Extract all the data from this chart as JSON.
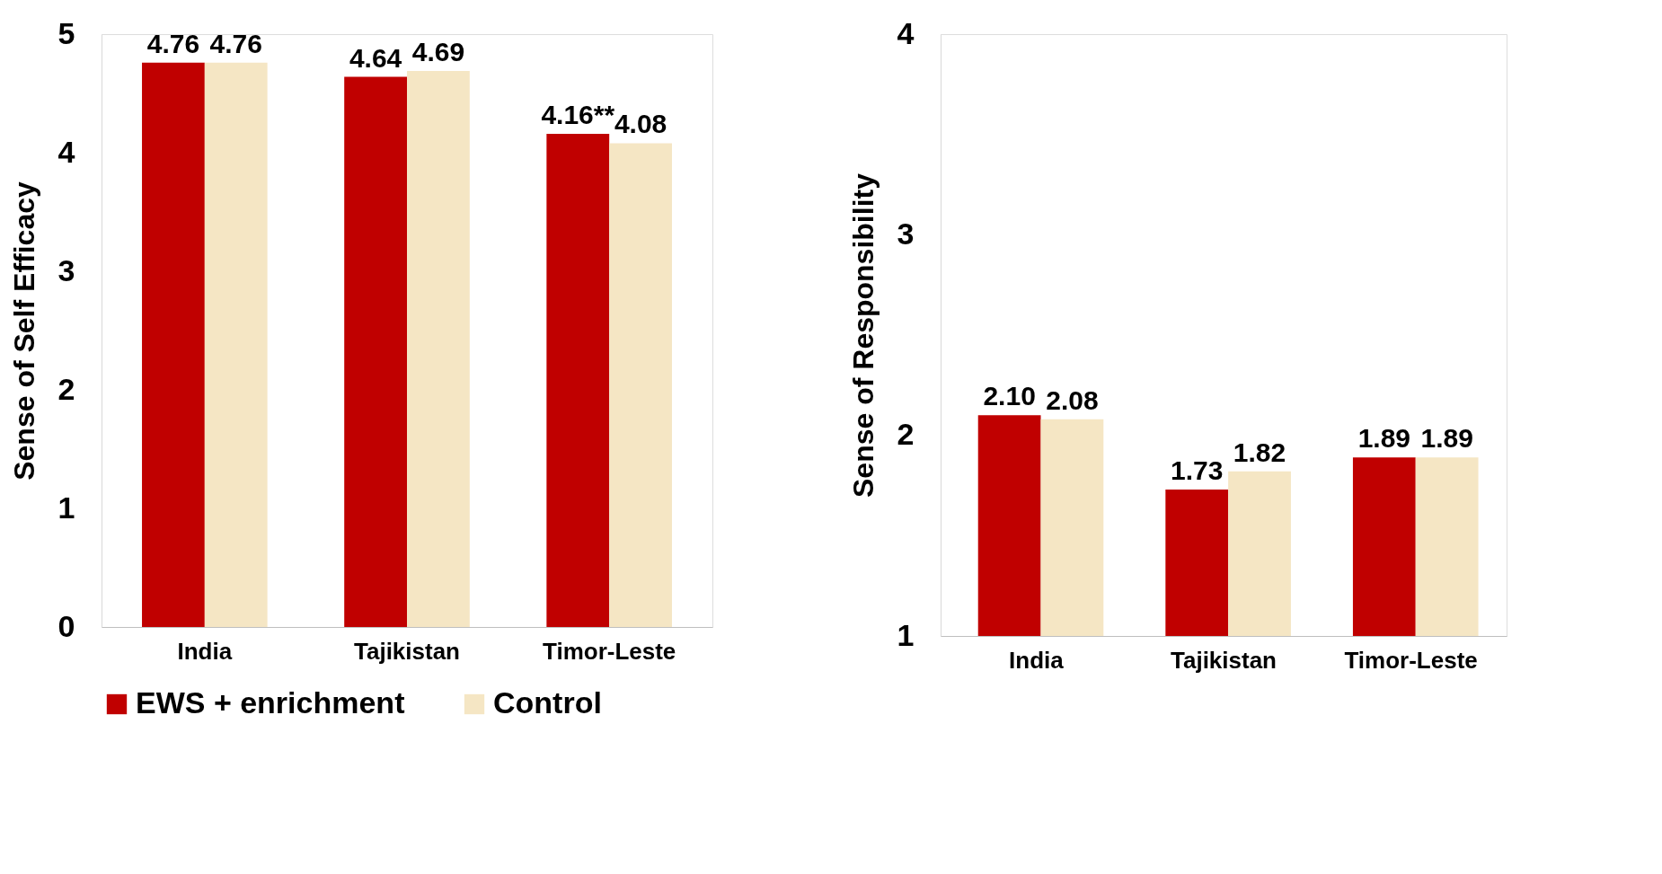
{
  "chart_data": [
    {
      "type": "bar",
      "ylabel": "Sense of Self Efficacy",
      "categories": [
        "India",
        "Tajikistan",
        "Timor-Leste"
      ],
      "ylim": [
        0,
        5
      ],
      "yticks": [
        0,
        1,
        2,
        3,
        4,
        5
      ],
      "grid": false,
      "legend": "bottom",
      "series": [
        {
          "name": "EWS + enrichment",
          "color": "#c00000",
          "values": [
            4.76,
            4.64,
            4.16
          ],
          "value_labels": [
            "4.76",
            "4.64",
            "4.16**"
          ]
        },
        {
          "name": "Control",
          "color": "#f5e6c4",
          "values": [
            4.76,
            4.69,
            4.08
          ],
          "value_labels": [
            "4.76",
            "4.69",
            "4.08"
          ]
        }
      ]
    },
    {
      "type": "bar",
      "ylabel": "Sense of Responsibility",
      "categories": [
        "India",
        "Tajikistan",
        "Timor-Leste"
      ],
      "ylim": [
        1,
        4
      ],
      "yticks": [
        1,
        2,
        3,
        4
      ],
      "grid": false,
      "series": [
        {
          "name": "EWS + enrichment",
          "color": "#c00000",
          "values": [
            2.1,
            1.73,
            1.89
          ],
          "value_labels": [
            "2.10",
            "1.73",
            "1.89"
          ]
        },
        {
          "name": "Control",
          "color": "#f5e6c4",
          "values": [
            2.08,
            1.82,
            1.89
          ],
          "value_labels": [
            "2.08",
            "1.82",
            "1.89"
          ]
        }
      ]
    }
  ]
}
